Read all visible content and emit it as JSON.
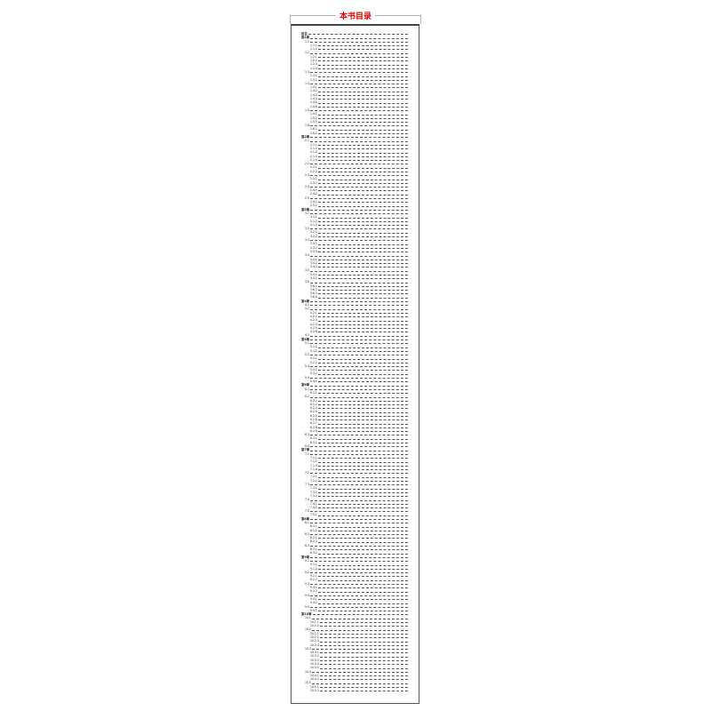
{
  "header": {
    "title": "本书目录"
  },
  "toc": [
    "前言",
    "第1章",
    "1.1",
    "1.1.1",
    "1.1.2",
    "1.2",
    "1.2.1",
    "1.2.2",
    "1.2.3",
    "1.2.4",
    "1.3",
    "1.3.1",
    "1.3.2",
    "1.4",
    "1.4.1",
    "1.4.2",
    "1.4.3",
    "1.4.4",
    "1.4.5",
    "1.4.6",
    "1.5",
    "1.5.1",
    "1.5.2",
    "1.5.3",
    "1.6",
    "1.6.1",
    "1.6.2",
    "第2章",
    "2.1",
    "2.1.1",
    "2.1.2",
    "2.1.3",
    "2.1.4",
    "2.1.5",
    "2.2",
    "2.2.1",
    "2.2.2",
    "2.3",
    "2.3.1",
    "2.3.2",
    "2.4",
    "2.4.1",
    "2.4.2",
    "2.5",
    "2.5.1",
    "2.5.2",
    "第3章",
    "3.1",
    "3.1.1",
    "3.1.2",
    "3.1.3",
    "3.2",
    "3.2.1",
    "3.2.2",
    "3.3",
    "3.3.1",
    "3.3.2",
    "3.3.3",
    "3.4",
    "3.4.1",
    "3.4.2",
    "3.4.3",
    "3.5",
    "3.5.1",
    "3.5.2",
    "3.6",
    "3.6.1",
    "3.6.2",
    "3.6.3",
    "3.6.4",
    "第4章",
    "4.1",
    "4.2",
    "4.2.1",
    "4.2.2",
    "4.2.3",
    "4.2.4",
    "4.2.5",
    "4.2.6",
    "4.3",
    "第5章",
    "5.1",
    "5.1.1",
    "5.1.2",
    "5.2",
    "5.2.1",
    "5.2.2",
    "5.3",
    "5.3.1",
    "5.3.2",
    "5.4",
    "5.4.1",
    "第6章",
    "6.1",
    "6.1.1",
    "6.2",
    "6.2.1",
    "6.2.2",
    "6.2.3",
    "6.2.4",
    "6.2.5",
    "6.2.6",
    "6.2.7",
    "6.2.8",
    "6.2.9",
    "6.3",
    "6.3.1",
    "6.3.2",
    "6.4",
    "第7章",
    "7.1",
    "7.1.1",
    "7.1.2",
    "7.1.3",
    "7.1.4",
    "7.2",
    "7.2.1",
    "7.2.2",
    "7.3",
    "7.3.1",
    "7.3.2",
    "7.3.3",
    "7.4",
    "7.4.1",
    "7.4.2",
    "7.5",
    "7.5.1",
    "第8章",
    "8.1",
    "8.1.1",
    "8.1.2",
    "8.2",
    "8.2.1",
    "8.2.2",
    "8.3",
    "8.3.1",
    "8.3.2",
    "第9章",
    "9.1",
    "9.1.1",
    "9.1.2",
    "9.2",
    "9.2.1",
    "9.2.2",
    "9.3",
    "9.3.1",
    "9.3.2",
    "9.4",
    "9.4.1",
    "9.4.2",
    "9.5",
    "9.5.1",
    "第10章",
    "10.1",
    "10.1.1",
    "10.1.2",
    "10.2",
    "10.2.1",
    "10.2.2",
    "10.2.3",
    "10.2.4",
    "10.3",
    "10.3.1",
    "10.3.2",
    "10.3.3",
    "10.3.4",
    "10.3.5",
    "10.4",
    "10.4.1",
    "10.4.2",
    "10.5",
    "10.5.1",
    "10.5.2"
  ]
}
